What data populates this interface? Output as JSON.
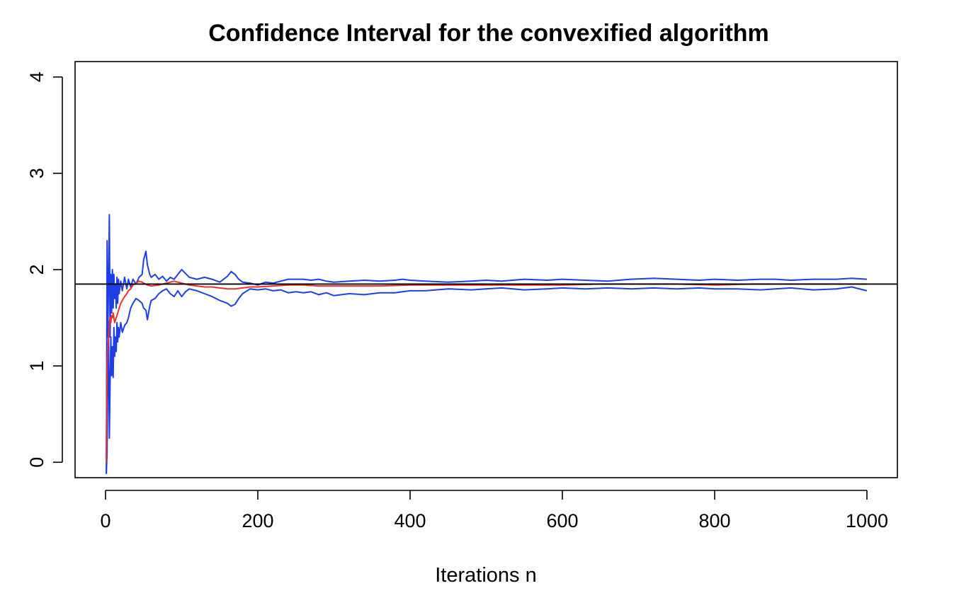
{
  "chart_data": {
    "type": "line",
    "title": "Confidence Interval for the convexified algorithm",
    "xlabel": "Iterations n",
    "ylabel": "",
    "xlim": [
      -40,
      1040
    ],
    "ylim": [
      -0.16,
      4.16
    ],
    "x_ticks": [
      0,
      200,
      400,
      600,
      800,
      1000
    ],
    "y_ticks": [
      0,
      1,
      2,
      3,
      4
    ],
    "grid": false,
    "legend": "none",
    "reference_line": {
      "y": 1.85,
      "color": "#000000"
    },
    "series": [
      {
        "role": "upper",
        "color": "#1f3fe6",
        "x": [
          1,
          2,
          3,
          4,
          5,
          6,
          7,
          8,
          9,
          10,
          11,
          12,
          13,
          14,
          15,
          16,
          17,
          18,
          20,
          22,
          25,
          28,
          30,
          33,
          36,
          40,
          44,
          48,
          50,
          53,
          55,
          58,
          60,
          65,
          70,
          75,
          80,
          85,
          90,
          95,
          100,
          105,
          110,
          120,
          130,
          140,
          150,
          160,
          165,
          170,
          175,
          180,
          190,
          200,
          210,
          220,
          230,
          240,
          250,
          260,
          270,
          280,
          290,
          300,
          320,
          340,
          360,
          380,
          390,
          400,
          420,
          450,
          480,
          500,
          520,
          550,
          580,
          600,
          630,
          660,
          690,
          720,
          750,
          780,
          800,
          830,
          860,
          880,
          900,
          930,
          960,
          980,
          1000
        ],
        "y": [
          -0.12,
          2.3,
          1.3,
          1.9,
          2.57,
          1.3,
          1.95,
          1.55,
          2.0,
          1.6,
          1.95,
          1.7,
          1.85,
          1.6,
          1.92,
          1.65,
          1.9,
          1.75,
          1.88,
          1.78,
          1.92,
          1.8,
          1.9,
          1.82,
          1.9,
          1.85,
          1.92,
          1.95,
          2.1,
          2.19,
          2.05,
          1.95,
          1.92,
          1.95,
          1.9,
          1.93,
          1.88,
          1.92,
          1.9,
          1.95,
          2.0,
          1.96,
          1.92,
          1.9,
          1.92,
          1.9,
          1.87,
          1.93,
          1.98,
          1.95,
          1.9,
          1.87,
          1.86,
          1.84,
          1.87,
          1.86,
          1.88,
          1.9,
          1.9,
          1.9,
          1.89,
          1.9,
          1.88,
          1.87,
          1.88,
          1.89,
          1.88,
          1.89,
          1.9,
          1.89,
          1.88,
          1.87,
          1.88,
          1.89,
          1.88,
          1.9,
          1.89,
          1.9,
          1.89,
          1.88,
          1.9,
          1.91,
          1.9,
          1.89,
          1.9,
          1.89,
          1.9,
          1.9,
          1.89,
          1.9,
          1.9,
          1.91,
          1.9
        ]
      },
      {
        "role": "lower",
        "color": "#1f3fe6",
        "x": [
          1,
          2,
          3,
          4,
          5,
          6,
          7,
          8,
          9,
          10,
          11,
          12,
          13,
          14,
          15,
          16,
          17,
          18,
          20,
          22,
          25,
          28,
          30,
          33,
          36,
          40,
          44,
          48,
          50,
          53,
          55,
          58,
          60,
          65,
          70,
          75,
          80,
          85,
          90,
          95,
          100,
          105,
          110,
          120,
          130,
          140,
          150,
          160,
          165,
          170,
          175,
          180,
          190,
          200,
          210,
          220,
          230,
          240,
          250,
          260,
          270,
          280,
          290,
          300,
          320,
          340,
          360,
          380,
          390,
          400,
          420,
          450,
          480,
          500,
          520,
          550,
          580,
          600,
          630,
          660,
          690,
          720,
          750,
          780,
          800,
          830,
          860,
          880,
          900,
          930,
          960,
          980,
          1000
        ],
        "y": [
          -0.12,
          0.1,
          0.9,
          1.3,
          0.25,
          0.8,
          1.3,
          0.9,
          1.2,
          0.88,
          1.4,
          1.1,
          1.3,
          1.15,
          1.45,
          1.25,
          1.4,
          1.3,
          1.45,
          1.35,
          1.42,
          1.45,
          1.5,
          1.6,
          1.65,
          1.7,
          1.68,
          1.65,
          1.6,
          1.58,
          1.48,
          1.62,
          1.68,
          1.7,
          1.75,
          1.78,
          1.8,
          1.75,
          1.72,
          1.78,
          1.72,
          1.77,
          1.8,
          1.78,
          1.75,
          1.72,
          1.68,
          1.65,
          1.62,
          1.64,
          1.7,
          1.75,
          1.8,
          1.79,
          1.8,
          1.78,
          1.79,
          1.76,
          1.77,
          1.76,
          1.77,
          1.74,
          1.76,
          1.73,
          1.75,
          1.74,
          1.76,
          1.76,
          1.77,
          1.78,
          1.78,
          1.8,
          1.79,
          1.8,
          1.81,
          1.79,
          1.8,
          1.81,
          1.8,
          1.81,
          1.8,
          1.81,
          1.8,
          1.81,
          1.8,
          1.8,
          1.79,
          1.8,
          1.81,
          1.79,
          1.8,
          1.82,
          1.78
        ]
      },
      {
        "role": "estimate",
        "color": "#e8322e",
        "x": [
          1,
          2,
          3,
          4,
          5,
          6,
          7,
          8,
          9,
          10,
          12,
          14,
          16,
          18,
          20,
          22,
          25,
          28,
          30,
          33,
          36,
          40,
          44,
          48,
          50,
          55,
          60,
          70,
          80,
          90,
          95,
          100,
          110,
          120,
          130,
          140,
          150,
          160,
          170,
          180,
          190,
          200,
          220,
          240,
          260,
          280,
          300,
          330,
          360,
          400,
          450,
          500,
          550,
          600,
          650,
          700,
          750,
          800,
          850,
          900,
          950,
          1000
        ],
        "y": [
          0.0,
          1.0,
          1.2,
          1.3,
          1.45,
          1.5,
          1.45,
          1.52,
          1.5,
          1.55,
          1.45,
          1.5,
          1.55,
          1.6,
          1.65,
          1.68,
          1.72,
          1.75,
          1.78,
          1.8,
          1.84,
          1.86,
          1.88,
          1.87,
          1.86,
          1.84,
          1.83,
          1.84,
          1.86,
          1.88,
          1.87,
          1.86,
          1.84,
          1.83,
          1.82,
          1.82,
          1.81,
          1.8,
          1.8,
          1.81,
          1.82,
          1.82,
          1.83,
          1.84,
          1.84,
          1.83,
          1.83,
          1.83,
          1.83,
          1.84,
          1.84,
          1.84,
          1.84,
          1.84,
          1.85,
          1.85,
          1.85,
          1.84,
          1.85,
          1.85,
          1.85,
          1.85
        ]
      }
    ]
  }
}
